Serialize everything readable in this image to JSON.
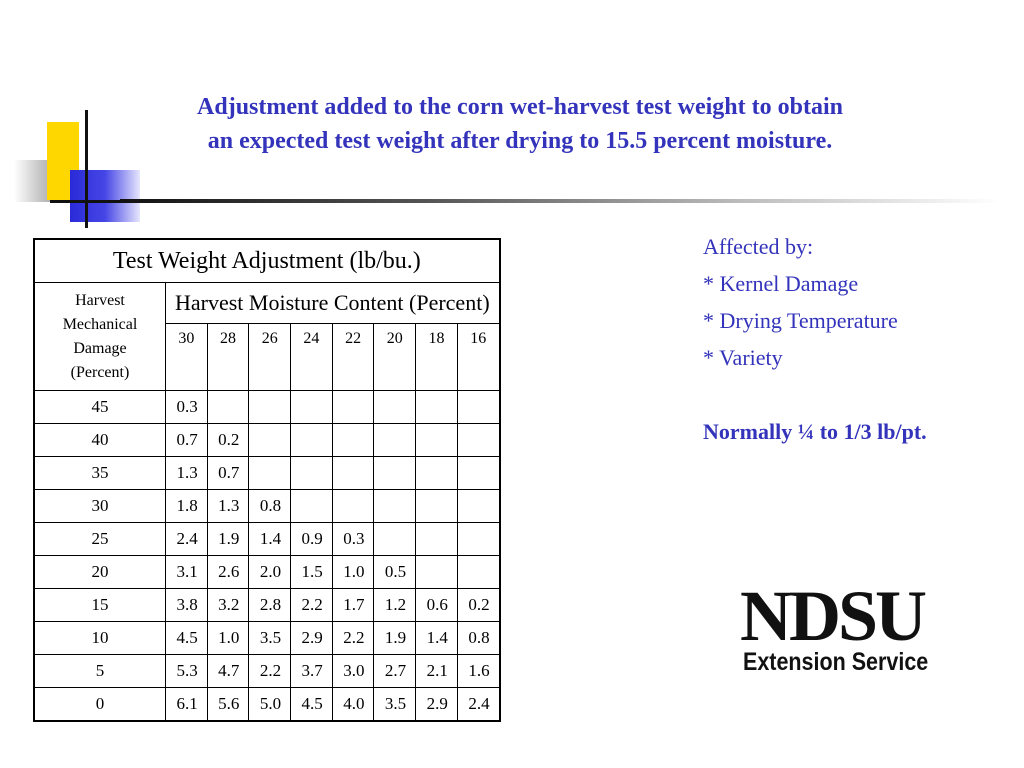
{
  "title": {
    "line1": "Adjustment added to the corn wet-harvest test weight to obtain",
    "line2": "an expected test weight after drying to 15.5 percent moisture."
  },
  "table": {
    "caption": "Test Weight Adjustment (lb/bu.)",
    "row_header": "Harvest Mechanical Damage (Percent)",
    "row_header_lines": [
      "Harvest",
      "Mechanical",
      "Damage",
      "(Percent)"
    ],
    "column_group": "Harvest Moisture Content (Percent)",
    "columns": [
      "30",
      "28",
      "26",
      "24",
      "22",
      "20",
      "18",
      "16"
    ],
    "rows": [
      {
        "damage": "45",
        "values": [
          "0.3",
          "",
          "",
          "",
          "",
          "",
          "",
          ""
        ]
      },
      {
        "damage": "40",
        "values": [
          "0.7",
          "0.2",
          "",
          "",
          "",
          "",
          "",
          ""
        ]
      },
      {
        "damage": "35",
        "values": [
          "1.3",
          "0.7",
          "",
          "",
          "",
          "",
          "",
          ""
        ]
      },
      {
        "damage": "30",
        "values": [
          "1.8",
          "1.3",
          "0.8",
          "",
          "",
          "",
          "",
          ""
        ]
      },
      {
        "damage": "25",
        "values": [
          "2.4",
          "1.9",
          "1.4",
          "0.9",
          "0.3",
          "",
          "",
          ""
        ]
      },
      {
        "damage": "20",
        "values": [
          "3.1",
          "2.6",
          "2.0",
          "1.5",
          "1.0",
          "0.5",
          "",
          ""
        ]
      },
      {
        "damage": "15",
        "values": [
          "3.8",
          "3.2",
          "2.8",
          "2.2",
          "1.7",
          "1.2",
          "0.6",
          "0.2"
        ]
      },
      {
        "damage": "10",
        "values": [
          "4.5",
          "1.0",
          "3.5",
          "2.9",
          "2.2",
          "1.9",
          "1.4",
          "0.8"
        ]
      },
      {
        "damage": "5",
        "values": [
          "5.3",
          "4.7",
          "2.2",
          "3.7",
          "3.0",
          "2.7",
          "2.1",
          "1.6"
        ]
      },
      {
        "damage": "0",
        "values": [
          "6.1",
          "5.6",
          "5.0",
          "4.5",
          "4.0",
          "3.5",
          "2.9",
          "2.4"
        ]
      }
    ]
  },
  "side": {
    "heading": "Affected by:",
    "items": [
      "* Kernel Damage",
      "* Drying Temperature",
      "* Variety"
    ],
    "note": "Normally ¼ to 1/3 lb/pt."
  },
  "logo": {
    "name": "NDSU",
    "subtitle": "Extension Service"
  },
  "colors": {
    "accent": "#3333bb",
    "deco_yellow": "#ffd700",
    "deco_blue": "#2a2ad8"
  }
}
